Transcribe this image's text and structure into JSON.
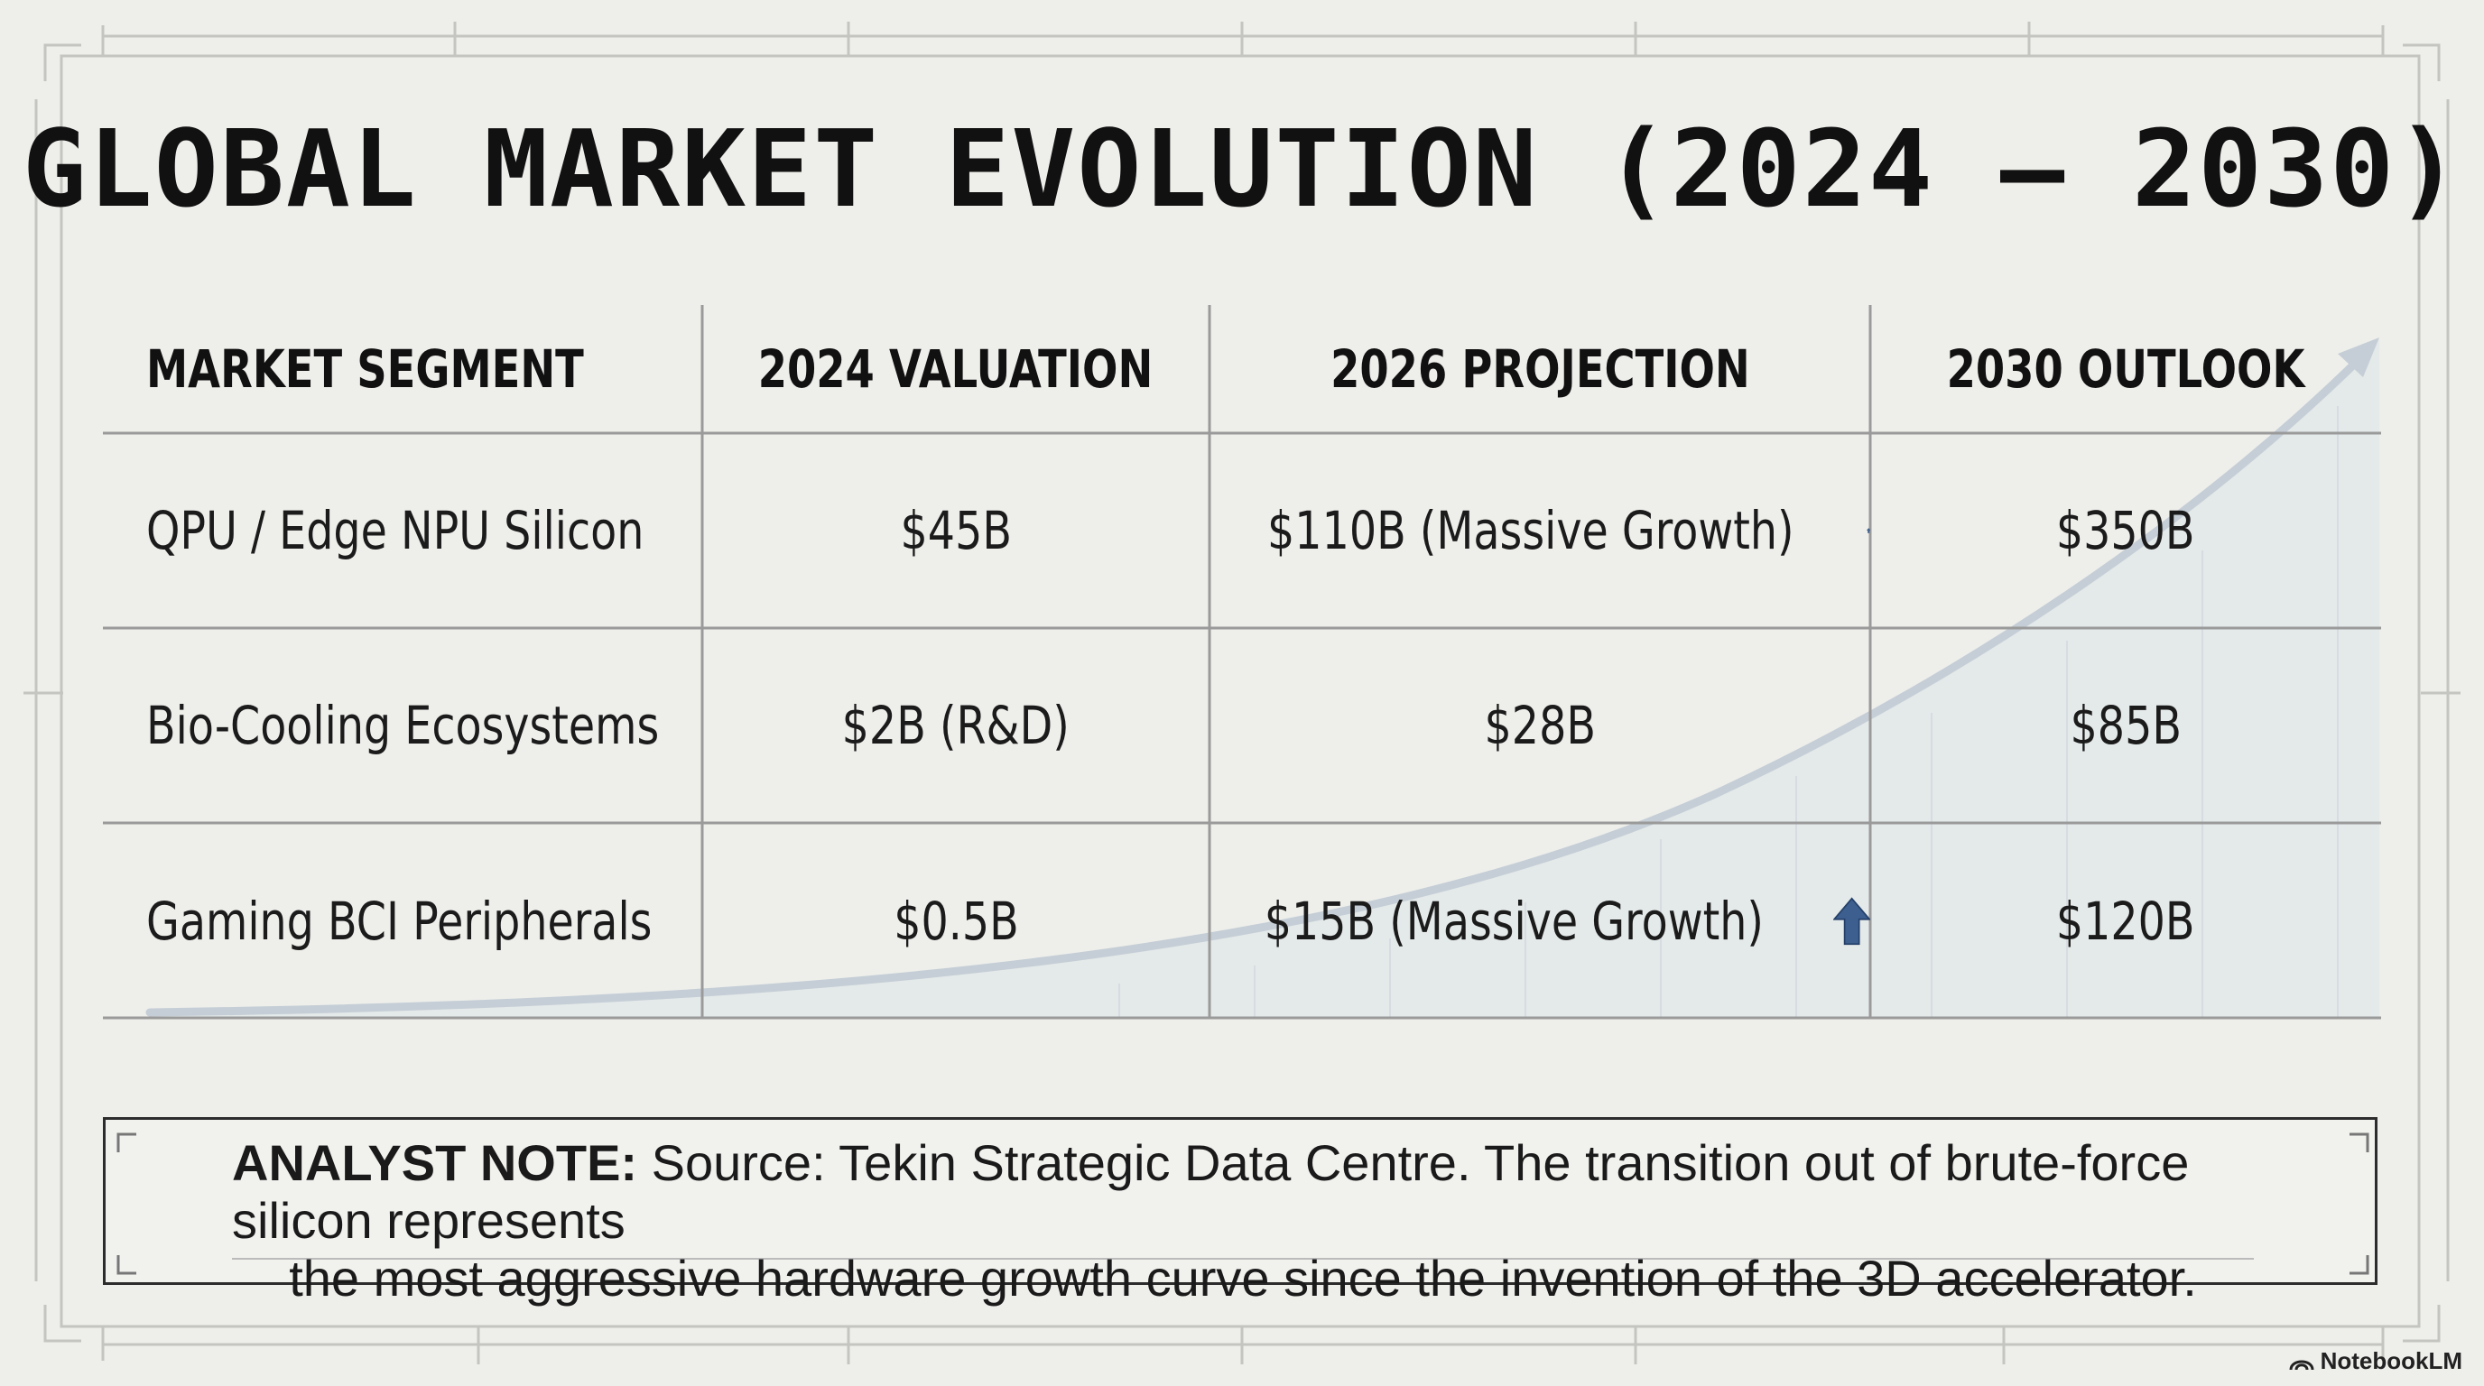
{
  "title": "GLOBAL MARKET EVOLUTION (2024 – 2030)",
  "table": {
    "headers": [
      "MARKET SEGMENT",
      "2024 VALUATION",
      "2026 PROJECTION",
      "2030 OUTLOOK"
    ],
    "rows": [
      {
        "segment": "QPU / Edge NPU Silicon",
        "v2024": "$45B",
        "v2026": "$110B (Massive Growth)",
        "v2030": "$350B",
        "arrow": true
      },
      {
        "segment": "Bio-Cooling Ecosystems",
        "v2024": "$2B (R&D)",
        "v2026": "$28B",
        "v2030": "$85B",
        "arrow": false
      },
      {
        "segment": "Gaming BCI Peripherals",
        "v2024": "$0.5B",
        "v2026": "$15B (Massive Growth)",
        "v2030": "$120B",
        "arrow": true
      }
    ]
  },
  "note": {
    "label": "ANALYST NOTE:",
    "line1": "Source: Tekin Strategic Data Centre. The transition out of brute-force silicon represents",
    "line2": "the most aggressive hardware growth curve since the invention of the 3D accelerator."
  },
  "branding": {
    "label": "NotebookLM"
  },
  "colors": {
    "background": "#eeefeb",
    "arrow": "#3d5f8f",
    "curve": "#c5ced6",
    "grid": "#9a9a9a"
  },
  "icons": {
    "growth_arrow": "up-arrow-icon",
    "brand": "notebooklm-icon"
  }
}
